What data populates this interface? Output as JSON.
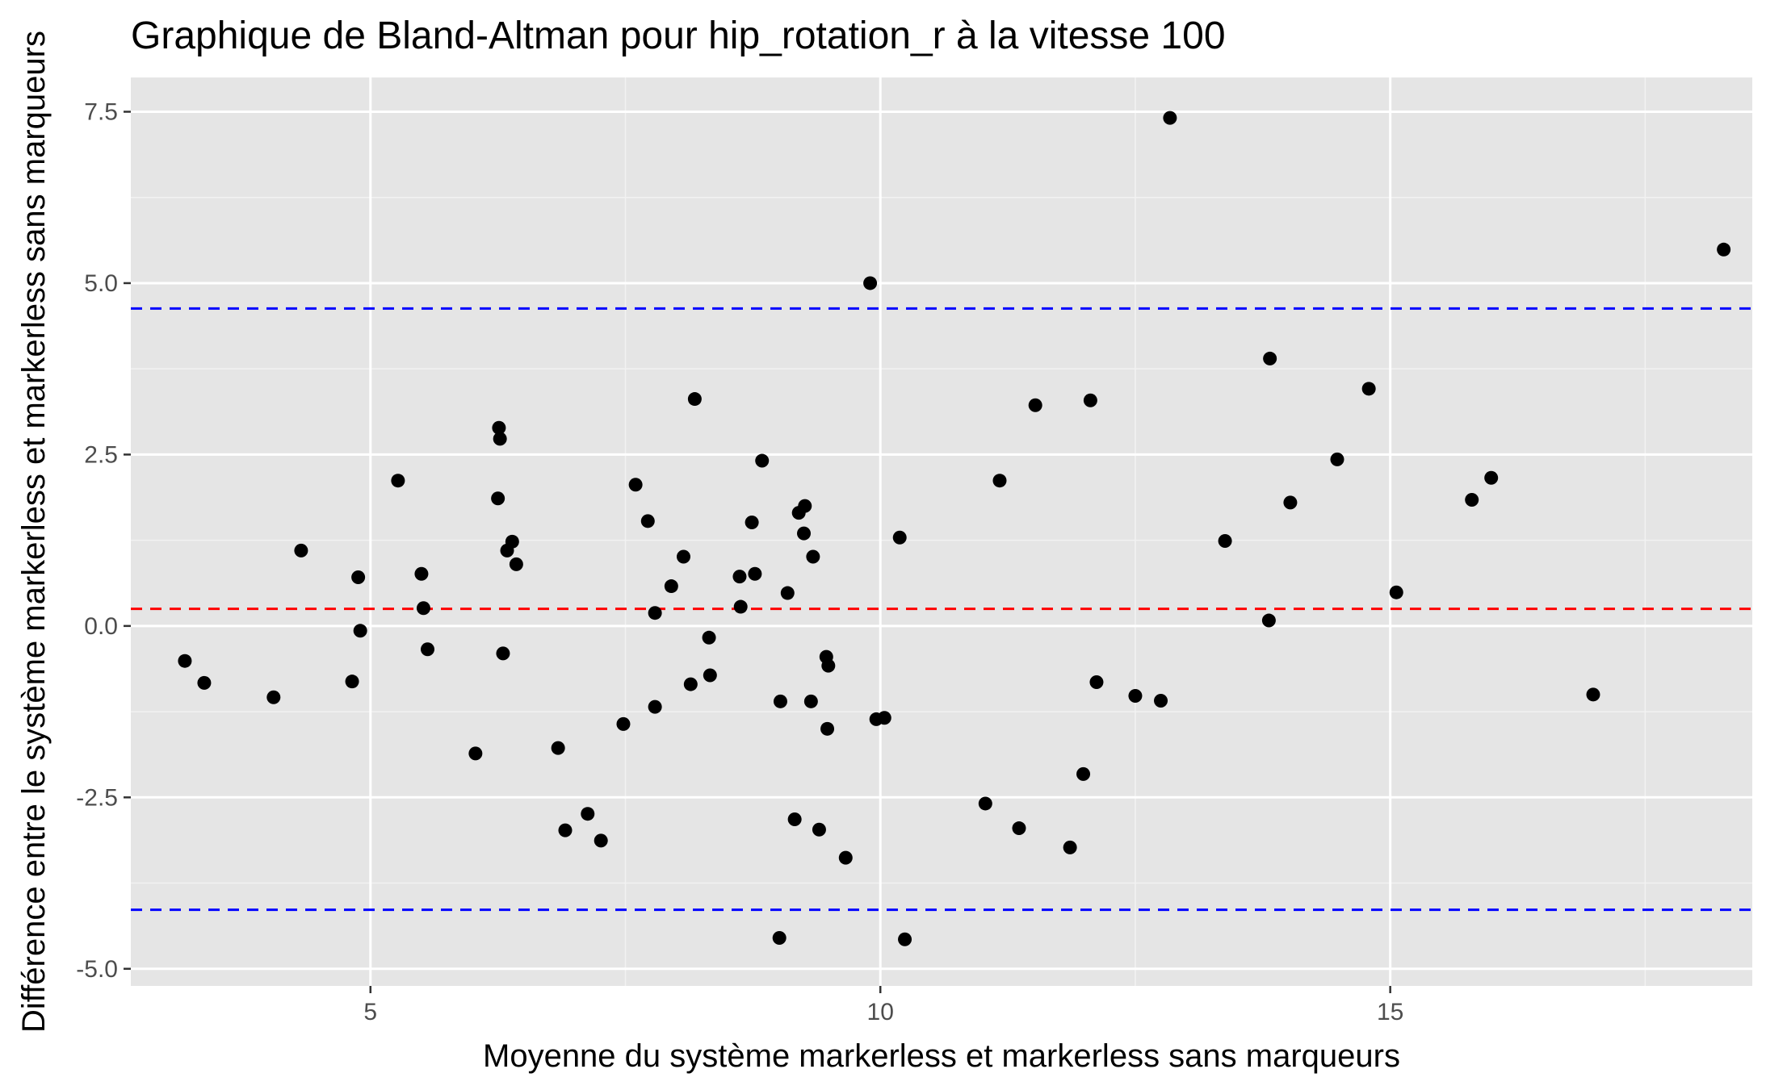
{
  "chart_data": {
    "type": "scatter",
    "title": "Graphique de Bland-Altman pour hip_rotation_r à la vitesse 100",
    "xlabel": "Moyenne du système markerless et markerless sans marqueurs",
    "ylabel": "Différence entre le système markerless et markerless sans marqueurs",
    "xlim": [
      2.65,
      18.55
    ],
    "ylim": [
      -5.25,
      8.0
    ],
    "x_ticks": [
      5,
      10,
      15
    ],
    "x_tick_labels": [
      "5",
      "10",
      "15"
    ],
    "y_ticks": [
      -5,
      -2.5,
      0,
      2.5,
      5,
      7.5
    ],
    "y_tick_labels": [
      "-5.0",
      "-2.5",
      "0.0",
      "2.5",
      "5.0",
      "7.5"
    ],
    "grid": true,
    "background": "#e5e5e5",
    "point_color": "#000000",
    "reference_lines": [
      {
        "value": 4.63,
        "color": "#0000ff",
        "style": "dashed"
      },
      {
        "value": 0.25,
        "color": "#ff0000",
        "style": "dashed"
      },
      {
        "value": -4.14,
        "color": "#0000ff",
        "style": "dashed"
      }
    ],
    "points": [
      {
        "x": 3.18,
        "y": -0.51
      },
      {
        "x": 3.37,
        "y": -0.83
      },
      {
        "x": 4.05,
        "y": -1.04
      },
      {
        "x": 4.32,
        "y": 1.1
      },
      {
        "x": 4.82,
        "y": -0.81
      },
      {
        "x": 4.88,
        "y": 0.71
      },
      {
        "x": 4.9,
        "y": -0.07
      },
      {
        "x": 5.27,
        "y": 2.12
      },
      {
        "x": 5.5,
        "y": 0.76
      },
      {
        "x": 5.52,
        "y": 0.26
      },
      {
        "x": 5.56,
        "y": -0.34
      },
      {
        "x": 6.03,
        "y": -1.86
      },
      {
        "x": 6.25,
        "y": 1.86
      },
      {
        "x": 6.26,
        "y": 2.89
      },
      {
        "x": 6.27,
        "y": 2.73
      },
      {
        "x": 6.3,
        "y": -0.4
      },
      {
        "x": 6.34,
        "y": 1.1
      },
      {
        "x": 6.39,
        "y": 1.23
      },
      {
        "x": 6.43,
        "y": 0.9
      },
      {
        "x": 6.84,
        "y": -1.78
      },
      {
        "x": 6.91,
        "y": -2.98
      },
      {
        "x": 7.13,
        "y": -2.74
      },
      {
        "x": 7.26,
        "y": -3.13
      },
      {
        "x": 7.48,
        "y": -1.43
      },
      {
        "x": 7.6,
        "y": 2.06
      },
      {
        "x": 7.72,
        "y": 1.53
      },
      {
        "x": 7.79,
        "y": 0.19
      },
      {
        "x": 7.79,
        "y": -1.18
      },
      {
        "x": 7.95,
        "y": 0.58
      },
      {
        "x": 8.07,
        "y": 1.01
      },
      {
        "x": 8.14,
        "y": -0.85
      },
      {
        "x": 8.18,
        "y": 3.31
      },
      {
        "x": 8.32,
        "y": -0.17
      },
      {
        "x": 8.33,
        "y": -0.72
      },
      {
        "x": 8.62,
        "y": 0.72
      },
      {
        "x": 8.63,
        "y": 0.28
      },
      {
        "x": 8.74,
        "y": 1.51
      },
      {
        "x": 8.77,
        "y": 0.76
      },
      {
        "x": 8.84,
        "y": 2.41
      },
      {
        "x": 9.01,
        "y": -4.55
      },
      {
        "x": 9.02,
        "y": -1.1
      },
      {
        "x": 9.09,
        "y": 0.48
      },
      {
        "x": 9.16,
        "y": -2.82
      },
      {
        "x": 9.2,
        "y": 1.65
      },
      {
        "x": 9.25,
        "y": 1.35
      },
      {
        "x": 9.26,
        "y": 1.75
      },
      {
        "x": 9.32,
        "y": -1.1
      },
      {
        "x": 9.34,
        "y": 1.01
      },
      {
        "x": 9.4,
        "y": -2.97
      },
      {
        "x": 9.47,
        "y": -0.45
      },
      {
        "x": 9.48,
        "y": -1.5
      },
      {
        "x": 9.49,
        "y": -0.58
      },
      {
        "x": 9.66,
        "y": -3.38
      },
      {
        "x": 9.9,
        "y": 5.0
      },
      {
        "x": 9.96,
        "y": -1.36
      },
      {
        "x": 10.04,
        "y": -1.34
      },
      {
        "x": 10.19,
        "y": 1.29
      },
      {
        "x": 10.24,
        "y": -4.57
      },
      {
        "x": 11.03,
        "y": -2.59
      },
      {
        "x": 11.17,
        "y": 2.12
      },
      {
        "x": 11.36,
        "y": -2.95
      },
      {
        "x": 11.52,
        "y": 3.22
      },
      {
        "x": 11.86,
        "y": -3.23
      },
      {
        "x": 11.99,
        "y": -2.16
      },
      {
        "x": 12.06,
        "y": 3.29
      },
      {
        "x": 12.12,
        "y": -0.82
      },
      {
        "x": 12.5,
        "y": -1.02
      },
      {
        "x": 12.75,
        "y": -1.09
      },
      {
        "x": 12.84,
        "y": 7.41
      },
      {
        "x": 13.38,
        "y": 1.24
      },
      {
        "x": 13.81,
        "y": 0.08
      },
      {
        "x": 13.82,
        "y": 3.9
      },
      {
        "x": 14.02,
        "y": 1.8
      },
      {
        "x": 14.48,
        "y": 2.43
      },
      {
        "x": 14.79,
        "y": 3.46
      },
      {
        "x": 15.06,
        "y": 0.49
      },
      {
        "x": 15.8,
        "y": 1.84
      },
      {
        "x": 15.99,
        "y": 2.16
      },
      {
        "x": 16.99,
        "y": -1.0
      },
      {
        "x": 18.27,
        "y": 5.49
      }
    ]
  }
}
